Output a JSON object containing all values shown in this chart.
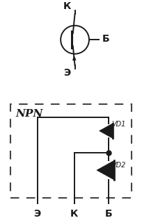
{
  "bg_color": "#ffffff",
  "line_color": "#1a1a1a",
  "dash_color": "#444444",
  "npn_label": "NPN",
  "vd1_label": "VD1",
  "vd2_label": "VD2",
  "e_label": "Э",
  "k_label": "К",
  "b_label": "Б",
  "fig_width": 2.04,
  "fig_height": 3.14,
  "dpi": 100
}
